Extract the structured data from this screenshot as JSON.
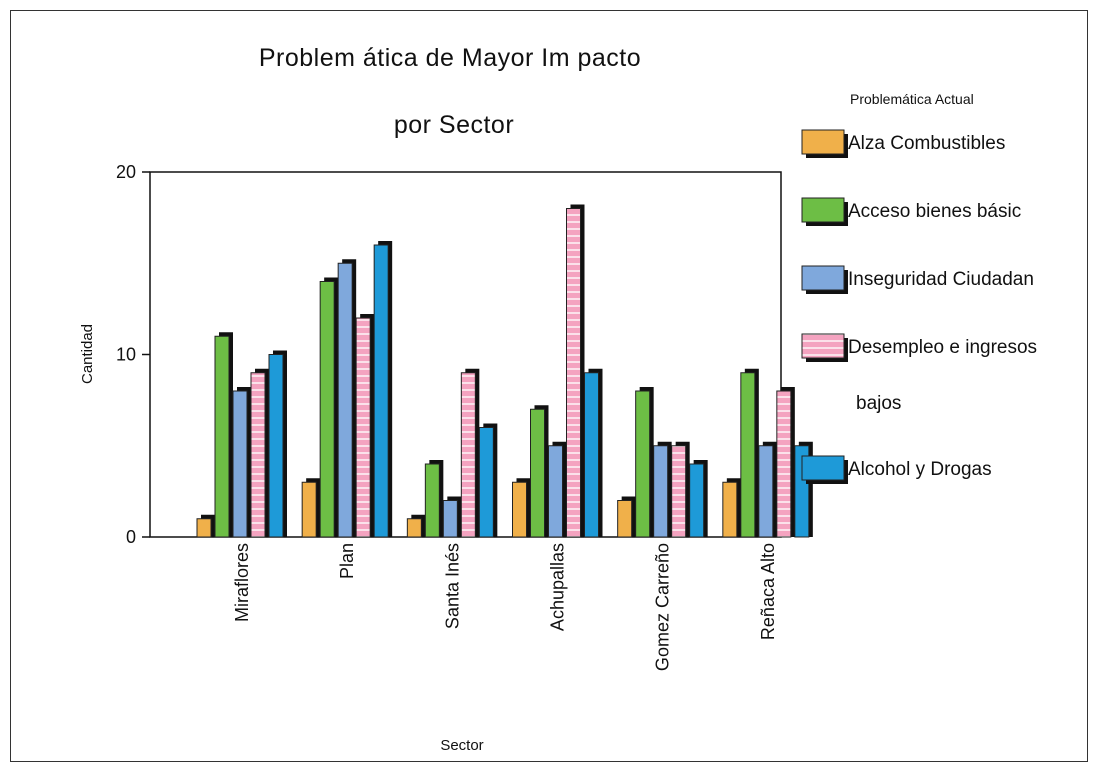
{
  "chart_data": {
    "type": "bar",
    "title_lines": [
      "Problem ática de Mayor Im pacto",
      "por Sector"
    ],
    "xlabel": "Sector",
    "ylabel": "Cantidad",
    "ylim": [
      0,
      20
    ],
    "yticks": [
      0,
      10,
      20
    ],
    "categories": [
      "Miraflores",
      "Plan",
      "Santa Inés",
      "Achupallas",
      "Gomez Carreño",
      "Reñaca Alto"
    ],
    "legend_title": "Problemática Actual",
    "legend_position": "right",
    "grid": false,
    "series": [
      {
        "name": "Alza Combustibles",
        "legend_lines": [
          "Alza Combustibles"
        ],
        "color": "#F0B04A",
        "pattern": "plain",
        "values": [
          1,
          3,
          1,
          3,
          2,
          3
        ]
      },
      {
        "name": "Acceso bienes básic",
        "legend_lines": [
          "Acceso bienes básic"
        ],
        "color": "#6DBE45",
        "pattern": "plain",
        "values": [
          11,
          14,
          4,
          7,
          8,
          9
        ]
      },
      {
        "name": "Inseguridad Ciudadan",
        "legend_lines": [
          "Inseguridad Ciudadan"
        ],
        "color": "#7FA8DC",
        "pattern": "plain",
        "values": [
          8,
          15,
          2,
          5,
          5,
          5
        ]
      },
      {
        "name": "Desempleo e ingresos bajos",
        "legend_lines": [
          "Desempleo e ingresos",
          "bajos"
        ],
        "color": "#F4A3C0",
        "pattern": "stripes",
        "values": [
          9,
          12,
          9,
          18,
          5,
          8
        ]
      },
      {
        "name": "Alcohol y Drogas",
        "legend_lines": [
          "Alcohol y Drogas"
        ],
        "color": "#1E9AD8",
        "pattern": "plain",
        "values": [
          10,
          16,
          6,
          9,
          4,
          5
        ]
      }
    ]
  }
}
